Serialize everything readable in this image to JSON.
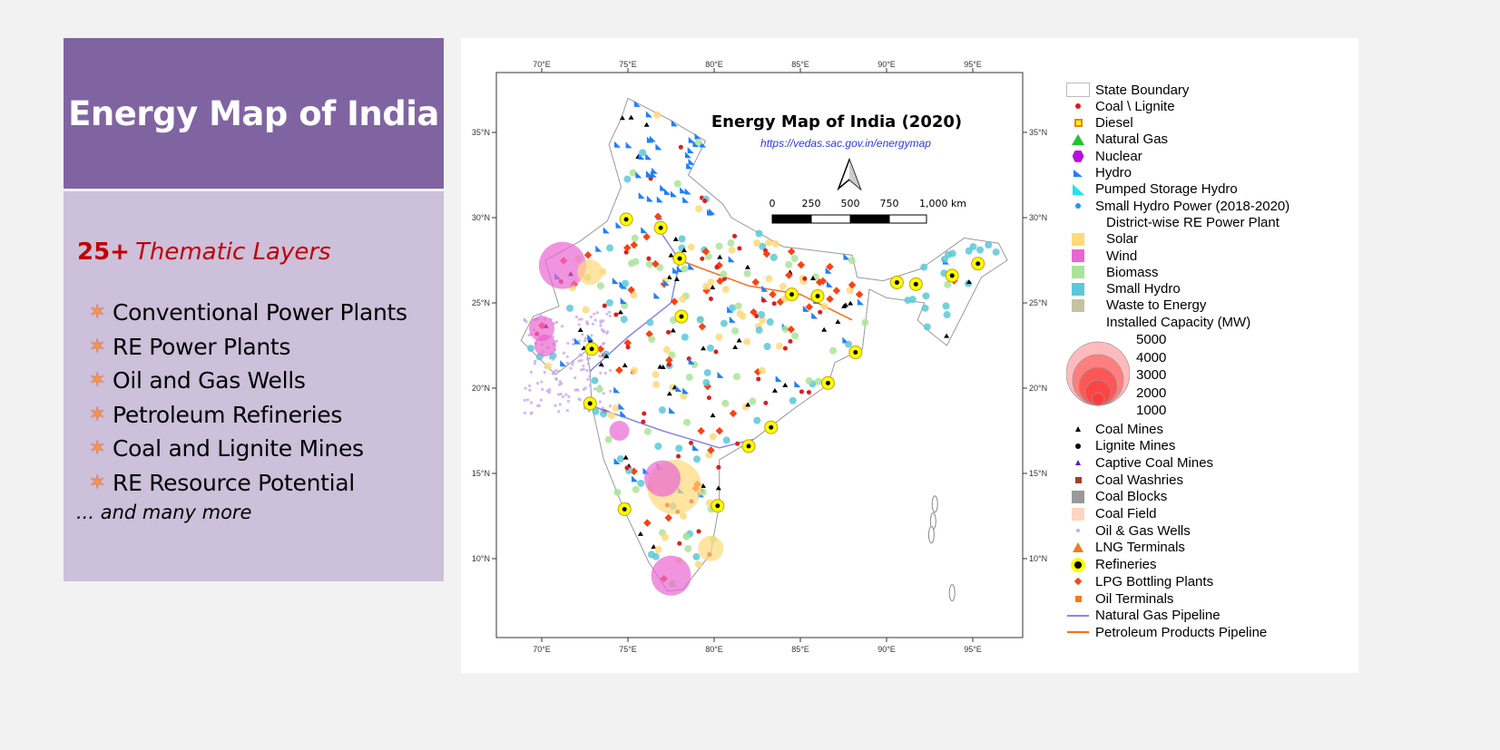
{
  "slide": {
    "title": "Energy Map of India",
    "heading_number": "25+",
    "heading_text": "Thematic Layers",
    "items": [
      "Conventional Power Plants",
      "RE Power Plants",
      "Oil and Gas Wells",
      "Petroleum Refineries",
      "Coal and Lignite Mines",
      "RE Resource Potential"
    ],
    "more": "... and many more",
    "bullet_icon": "star-icon"
  },
  "map": {
    "title": "Energy Map of India (2020)",
    "url": "https://vedas.sac.gov.in/energymap",
    "scale_labels": [
      "0",
      "250",
      "500",
      "750",
      "1,000 km"
    ],
    "lon_ticks": [
      "70°E",
      "75°E",
      "80°E",
      "85°E",
      "90°E",
      "95°E"
    ],
    "lat_ticks": [
      "35°N",
      "30°N",
      "25°N",
      "20°N",
      "15°N",
      "10°N"
    ],
    "north_arrow": "north-arrow-icon"
  },
  "legend": {
    "items": [
      {
        "label": "State Boundary",
        "sym": "box",
        "color": "#ffffff"
      },
      {
        "label": "Coal \\ Lignite",
        "sym": "dot",
        "color": "#e31a1c"
      },
      {
        "label": "Diesel",
        "sym": "sq-outline",
        "color": "#ffff00"
      },
      {
        "label": "Natural Gas",
        "sym": "tri",
        "color": "#22c32e"
      },
      {
        "label": "Nuclear",
        "sym": "hex",
        "color": "#b30fe0"
      },
      {
        "label": "Hydro",
        "sym": "rtri",
        "color": "#1e7fff"
      },
      {
        "label": "Pumped Storage Hydro",
        "sym": "rtri-big",
        "color": "#19e5f0"
      },
      {
        "label": "Small Hydro Power (2018-2020)",
        "sym": "dot",
        "color": "#2196f3"
      },
      {
        "label": "District-wise RE Power Plant",
        "sym": "none",
        "color": "#ffffff"
      },
      {
        "label": "Solar",
        "sym": "sq",
        "color": "#ffd97a"
      },
      {
        "label": "Wind",
        "sym": "sq",
        "color": "#e966d3"
      },
      {
        "label": "Biomass",
        "sym": "sq",
        "color": "#a9e49a"
      },
      {
        "label": "Small Hydro",
        "sym": "sq",
        "color": "#5bc8d8"
      },
      {
        "label": "Waste to Energy",
        "sym": "sq",
        "color": "#c4c2a0"
      },
      {
        "label": "Installed Capacity (MW)",
        "sym": "none",
        "color": "#ffffff"
      }
    ],
    "capacity": [
      "5000",
      "4000",
      "3000",
      "2000",
      "1000"
    ],
    "items2": [
      {
        "label": "Coal Mines",
        "sym": "tri-small",
        "color": "#000000"
      },
      {
        "label": "Lignite Mines",
        "sym": "dot",
        "color": "#000000"
      },
      {
        "label": "Captive Coal Mines",
        "sym": "tri-small",
        "color": "#5a1bd4"
      },
      {
        "label": "Coal Washries",
        "sym": "sq-small",
        "color": "#a0402a"
      },
      {
        "label": "Coal Blocks",
        "sym": "sq",
        "color": "#999999"
      },
      {
        "label": "Coal Field",
        "sym": "sq",
        "color": "#fdd5c0"
      },
      {
        "label": "Oil & Gas Wells",
        "sym": "dot-small",
        "color": "#c9a8ec"
      },
      {
        "label": "LNG Terminals",
        "sym": "tri-orange",
        "color": "#f07c1c"
      },
      {
        "label": "Refineries",
        "sym": "refinery",
        "color": "#ffff00"
      },
      {
        "label": "LPG Bottling Plants",
        "sym": "diamond",
        "color": "#ff4010"
      },
      {
        "label": "Oil Terminals",
        "sym": "sq-small",
        "color": "#f07c1c"
      },
      {
        "label": "Natural Gas Pipeline",
        "sym": "line",
        "color": "#8a86e8"
      },
      {
        "label": "Petroleum Products Pipeline",
        "sym": "line",
        "color": "#ff6a10"
      }
    ]
  }
}
